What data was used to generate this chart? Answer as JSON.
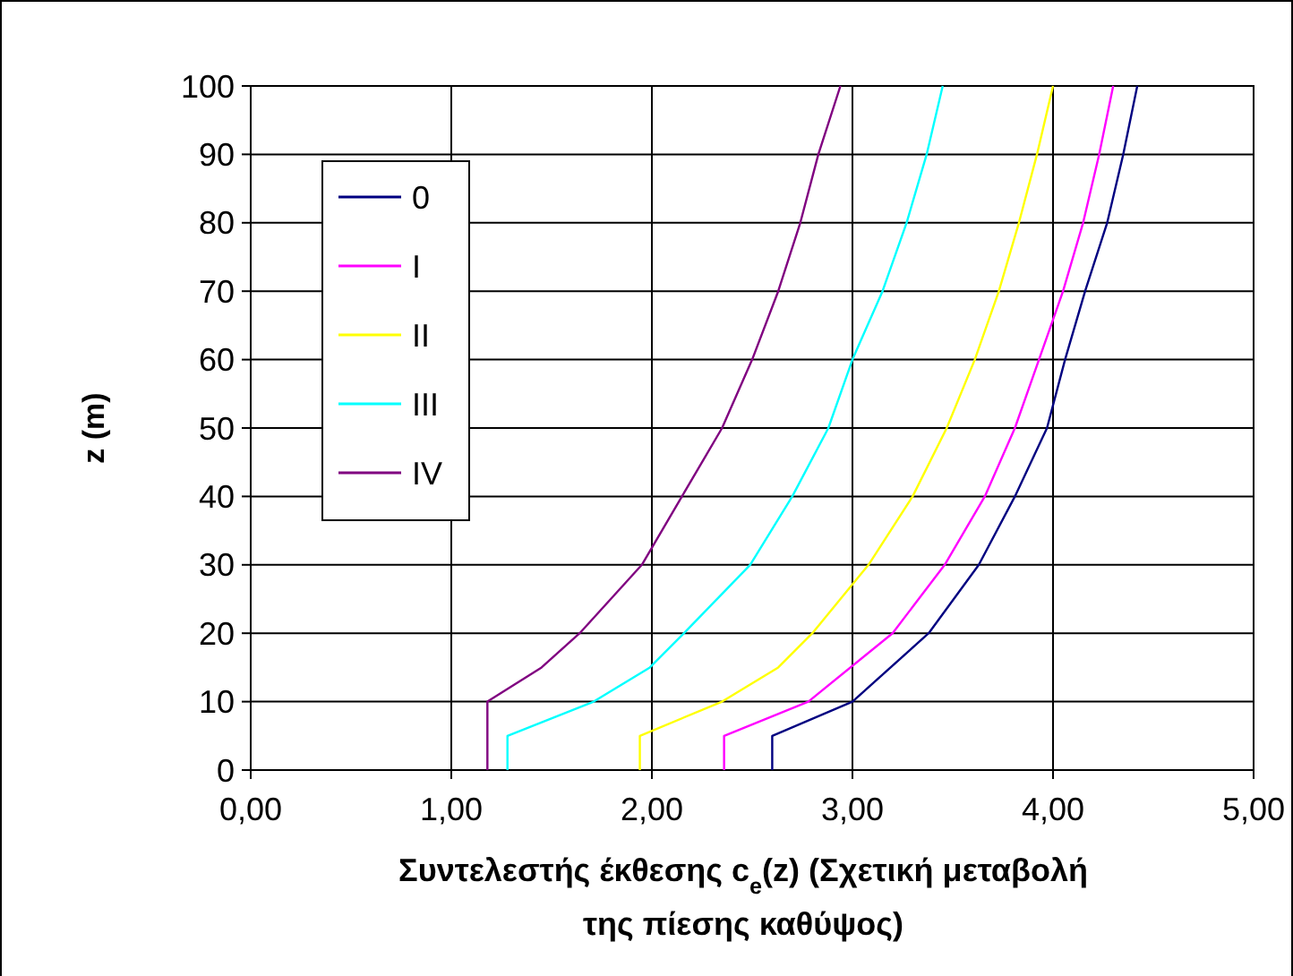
{
  "chart_data": {
    "type": "line",
    "xlabel": "Συντελεστής έκθεσης c$_{e}$(z) (Σχετική μεταβολή της πίεσης καθύψος)",
    "ylabel": "z (m)",
    "xlim": [
      0,
      5
    ],
    "xticks": [
      {
        "value": 0,
        "label": "0,00"
      },
      {
        "value": 1,
        "label": "1,00"
      },
      {
        "value": 2,
        "label": "2,00"
      },
      {
        "value": 3,
        "label": "3,00"
      },
      {
        "value": 4,
        "label": "4,00"
      },
      {
        "value": 5,
        "label": "5,00"
      }
    ],
    "ylim": [
      0,
      100
    ],
    "yticks": [
      0,
      10,
      20,
      30,
      40,
      50,
      60,
      70,
      80,
      90,
      100
    ],
    "grid": true,
    "legend": "top left",
    "marker": "none",
    "line_style": "solid",
    "series": [
      {
        "name": "0",
        "color": "#000080",
        "x": [
          2.6,
          2.6,
          3.0,
          3.38,
          3.63,
          3.81,
          3.97,
          4.06,
          4.16,
          4.27,
          4.35,
          4.42
        ],
        "values": [
          0,
          5,
          10,
          20,
          30,
          40,
          50,
          60,
          70,
          80,
          90,
          100
        ]
      },
      {
        "name": "I",
        "color": "#ff00ff",
        "x": [
          2.36,
          2.36,
          2.78,
          3.2,
          3.46,
          3.66,
          3.81,
          3.93,
          4.05,
          4.15,
          4.23,
          4.3
        ],
        "values": [
          0,
          5,
          10,
          20,
          30,
          40,
          50,
          60,
          70,
          80,
          90,
          100
        ]
      },
      {
        "name": "II",
        "color": "#ffff00",
        "x": [
          1.94,
          1.94,
          2.35,
          2.63,
          2.8,
          3.08,
          3.3,
          3.47,
          3.61,
          3.73,
          3.83,
          3.92,
          4.0
        ],
        "values": [
          0,
          5,
          10,
          15,
          20,
          30,
          40,
          50,
          60,
          70,
          80,
          90,
          100
        ]
      },
      {
        "name": "III",
        "color": "#00ffff",
        "x": [
          1.28,
          1.28,
          1.71,
          1.99,
          2.16,
          2.49,
          2.7,
          2.88,
          3.0,
          3.15,
          3.27,
          3.37,
          3.45
        ],
        "values": [
          0,
          5,
          10,
          15,
          20,
          30,
          40,
          50,
          60,
          70,
          80,
          90,
          100
        ]
      },
      {
        "name": "IV",
        "color": "#800080",
        "x": [
          1.18,
          1.18,
          1.45,
          1.64,
          1.95,
          2.15,
          2.35,
          2.5,
          2.63,
          2.74,
          2.83,
          2.94
        ],
        "values": [
          0,
          10,
          15,
          20,
          30,
          40,
          50,
          60,
          70,
          80,
          90,
          100
        ]
      }
    ]
  }
}
